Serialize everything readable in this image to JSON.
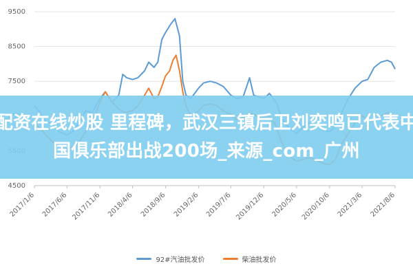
{
  "banner": {
    "line1": "配资在线炒股 里程碑，武汉三镇后卫刘奕鸣已代表中",
    "line2": "国俱乐部出战200场_来源_com_广州"
  },
  "chart_data": {
    "type": "line",
    "title": "",
    "xlabel": "",
    "ylabel": "",
    "ylim": [
      4500,
      9500
    ],
    "yticks": [
      4500,
      5500,
      6500,
      7500,
      8500,
      9500
    ],
    "xlim": [
      "2017-01-06",
      "2021-08-06"
    ],
    "xtick_labels": [
      "2017/1/6",
      "2017/6/6",
      "2017/11/6",
      "2018/4/6",
      "2018/9/6",
      "2019/2/6",
      "2019/7/6",
      "2019/12/6",
      "2020/5/6",
      "2020/10/6",
      "2021/3/6",
      "2021/8/6"
    ],
    "grid": "horizontal",
    "legend_position": "bottom",
    "series": [
      {
        "name": "92#汽油批发价",
        "color": "#5b9bd5",
        "points": [
          [
            "2017-01-06",
            6800
          ],
          [
            "2017-02-01",
            6600
          ],
          [
            "2017-03-01",
            6350
          ],
          [
            "2017-04-01",
            6250
          ],
          [
            "2017-05-01",
            6050
          ],
          [
            "2017-06-06",
            5950
          ],
          [
            "2017-07-01",
            6050
          ],
          [
            "2017-08-01",
            6300
          ],
          [
            "2017-09-01",
            6650
          ],
          [
            "2017-10-01",
            6600
          ],
          [
            "2017-11-06",
            7000
          ],
          [
            "2017-12-01",
            7200
          ],
          [
            "2018-01-01",
            6900
          ],
          [
            "2018-02-01",
            7100
          ],
          [
            "2018-02-20",
            7700
          ],
          [
            "2018-03-10",
            7600
          ],
          [
            "2018-04-06",
            7550
          ],
          [
            "2018-05-01",
            7600
          ],
          [
            "2018-06-01",
            7800
          ],
          [
            "2018-06-20",
            8050
          ],
          [
            "2018-07-15",
            7900
          ],
          [
            "2018-08-01",
            8050
          ],
          [
            "2018-08-20",
            8700
          ],
          [
            "2018-09-06",
            8900
          ],
          [
            "2018-10-01",
            9150
          ],
          [
            "2018-10-20",
            9300
          ],
          [
            "2018-11-10",
            8800
          ],
          [
            "2018-11-25",
            7500
          ],
          [
            "2018-12-10",
            7100
          ],
          [
            "2019-01-01",
            7000
          ],
          [
            "2019-02-06",
            7300
          ],
          [
            "2019-03-01",
            7450
          ],
          [
            "2019-04-01",
            7500
          ],
          [
            "2019-05-01",
            7450
          ],
          [
            "2019-06-01",
            7350
          ],
          [
            "2019-07-06",
            7100
          ],
          [
            "2019-08-01",
            7000
          ],
          [
            "2019-09-01",
            7050
          ],
          [
            "2019-10-01",
            7600
          ],
          [
            "2019-10-20",
            7100
          ],
          [
            "2019-12-06",
            7000
          ],
          [
            "2020-01-01",
            7150
          ],
          [
            "2020-02-01",
            6900
          ],
          [
            "2020-03-01",
            6400
          ],
          [
            "2020-04-01",
            6150
          ],
          [
            "2020-05-06",
            6000
          ],
          [
            "2020-06-01",
            6150
          ],
          [
            "2020-07-01",
            6300
          ],
          [
            "2020-08-01",
            6250
          ],
          [
            "2020-09-01",
            6100
          ],
          [
            "2020-10-06",
            6050
          ],
          [
            "2020-11-01",
            6200
          ],
          [
            "2020-12-01",
            6600
          ],
          [
            "2021-01-01",
            7000
          ],
          [
            "2021-02-01",
            7300
          ],
          [
            "2021-03-06",
            7500
          ],
          [
            "2021-04-01",
            7550
          ],
          [
            "2021-05-01",
            7900
          ],
          [
            "2021-06-01",
            8050
          ],
          [
            "2021-07-01",
            8100
          ],
          [
            "2021-07-20",
            8050
          ],
          [
            "2021-08-06",
            7850
          ]
        ]
      },
      {
        "name": "柴油批发价",
        "color": "#ed7d31",
        "points": [
          [
            "2017-01-06",
            6300
          ],
          [
            "2017-02-01",
            6150
          ],
          [
            "2017-03-01",
            5950
          ],
          [
            "2017-04-01",
            5750
          ],
          [
            "2017-05-01",
            5650
          ],
          [
            "2017-06-06",
            5550
          ],
          [
            "2017-07-01",
            5600
          ],
          [
            "2017-08-01",
            5750
          ],
          [
            "2017-09-01",
            6050
          ],
          [
            "2017-10-01",
            6300
          ],
          [
            "2017-11-06",
            6900
          ],
          [
            "2017-12-01",
            7200
          ],
          [
            "2018-01-01",
            6900
          ],
          [
            "2018-02-01",
            6700
          ],
          [
            "2018-03-01",
            6600
          ],
          [
            "2018-04-06",
            6650
          ],
          [
            "2018-05-01",
            6800
          ],
          [
            "2018-06-01",
            7100
          ],
          [
            "2018-06-20",
            7300
          ],
          [
            "2018-07-15",
            7000
          ],
          [
            "2018-08-01",
            7050
          ],
          [
            "2018-08-20",
            7350
          ],
          [
            "2018-09-06",
            7650
          ],
          [
            "2018-09-25",
            7800
          ],
          [
            "2018-10-10",
            8100
          ],
          [
            "2018-10-25",
            8250
          ],
          [
            "2018-11-10",
            7800
          ],
          [
            "2018-11-25",
            7200
          ],
          [
            "2018-12-10",
            6800
          ],
          [
            "2019-01-01",
            6500
          ],
          [
            "2019-02-06",
            6650
          ],
          [
            "2019-03-01",
            6800
          ],
          [
            "2019-04-01",
            6850
          ],
          [
            "2019-05-01",
            6800
          ],
          [
            "2019-06-01",
            6650
          ],
          [
            "2019-07-06",
            6550
          ],
          [
            "2019-08-01",
            6400
          ],
          [
            "2019-09-01",
            6450
          ],
          [
            "2019-10-01",
            6600
          ],
          [
            "2019-11-01",
            6500
          ],
          [
            "2019-12-06",
            6450
          ],
          [
            "2020-01-01",
            6500
          ],
          [
            "2020-02-01",
            6200
          ],
          [
            "2020-03-01",
            5700
          ],
          [
            "2020-04-01",
            5350
          ],
          [
            "2020-05-06",
            5200
          ],
          [
            "2020-06-01",
            5250
          ],
          [
            "2020-07-01",
            5300
          ],
          [
            "2020-08-01",
            5250
          ],
          [
            "2020-09-01",
            5150
          ],
          [
            "2020-10-06",
            5100
          ],
          [
            "2020-11-01",
            5250
          ],
          [
            "2020-12-01",
            5700
          ],
          [
            "2021-01-01",
            6000
          ],
          [
            "2021-02-01",
            6300
          ],
          [
            "2021-03-06",
            6500
          ],
          [
            "2021-04-01",
            6400
          ],
          [
            "2021-05-01",
            6350
          ],
          [
            "2021-06-01",
            6500
          ],
          [
            "2021-07-01",
            6600
          ],
          [
            "2021-08-06",
            6500
          ]
        ]
      }
    ]
  }
}
